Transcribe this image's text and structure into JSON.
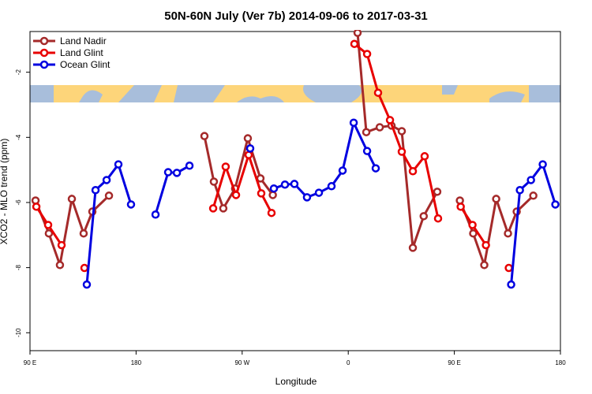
{
  "chart_data": {
    "type": "line",
    "title": "50N-60N July (Ver 7b)   2014-09-06 to 2017-03-31",
    "x_label": "Longitude",
    "y_label": "XCO2 - MLO trend (ppm)",
    "xlim": [
      90,
      540
    ],
    "xticks": [
      {
        "value": 90,
        "label": "90 E"
      },
      180,
      {
        "value": 270,
        "label": "90 W"
      },
      {
        "value": 360,
        "label": "0"
      },
      {
        "value": 450,
        "label": "90 E"
      },
      {
        "value": 540,
        "label": "180"
      }
    ],
    "ylim": [
      -10.55,
      -0.75
    ],
    "yticks": [
      -2,
      -4,
      -6,
      -8,
      -10
    ],
    "legend": "top-left",
    "series": [
      {
        "name": "Land Nadir",
        "color": "#a52a2a",
        "x": [
          94.7,
          106,
          115.4,
          125.5,
          135.5,
          142.9,
          157,
          null,
          238,
          246,
          254,
          264,
          274.8,
          285.5,
          296,
          null,
          367.9,
          375.3,
          386.7,
          396.7,
          405.4,
          414.8,
          424,
          435.5,
          null,
          454.7,
          466,
          475.4,
          485.5,
          495.5,
          502.9,
          517
        ],
        "values": [
          -5.94,
          -6.95,
          -7.92,
          -5.89,
          -6.95,
          -6.28,
          -5.79,
          null,
          -3.96,
          -5.36,
          -6.18,
          -5.57,
          -4.03,
          -5.26,
          -5.77,
          null,
          -0.79,
          -3.84,
          -3.69,
          -3.64,
          -3.81,
          -7.39,
          -6.42,
          -5.67,
          null,
          -5.94,
          -6.95,
          -7.92,
          -5.89,
          -6.95,
          -6.28,
          -5.79
        ]
      },
      {
        "name": "Land Glint",
        "color": "#e80000",
        "x": [
          95.4,
          105.4,
          116.8,
          null,
          136.2,
          null,
          245.4,
          256,
          264.8,
          275.5,
          286.2,
          294.9,
          null,
          365.2,
          376,
          385.3,
          395.4,
          405.4,
          414.8,
          424.8,
          436.2,
          null,
          455.4,
          465.4,
          476.8,
          null,
          496.2
        ],
        "values": [
          -6.13,
          -6.69,
          -7.31,
          null,
          -8.01,
          null,
          -6.18,
          -4.9,
          -5.77,
          -4.54,
          -5.72,
          -6.32,
          null,
          -1.13,
          -1.44,
          -2.63,
          -3.47,
          -4.44,
          -5.04,
          -4.58,
          -6.49,
          null,
          -6.13,
          -6.69,
          -7.31,
          null,
          -8.01
        ]
      },
      {
        "name": "Ocean Glint",
        "color": "#0000e0",
        "x": [
          138.2,
          145.6,
          155,
          165,
          175.7,
          null,
          196.5,
          207.2,
          214.6,
          225.3,
          null,
          276.8,
          null,
          296.9,
          306.3,
          314.3,
          325,
          335.1,
          345.8,
          355.2,
          364.6,
          376,
          383.3,
          null,
          498.2,
          505.6,
          515,
          525,
          535.7
        ],
        "values": [
          -8.52,
          -5.62,
          -5.31,
          -4.83,
          -6.06,
          null,
          -6.37,
          -5.07,
          -5.09,
          -4.87,
          null,
          -4.34,
          null,
          -5.57,
          -5.45,
          -5.43,
          -5.84,
          -5.7,
          -5.5,
          -5.02,
          -3.55,
          -4.42,
          -4.95,
          null,
          -8.52,
          -5.62,
          -5.31,
          -4.83,
          -6.06
        ]
      }
    ]
  }
}
